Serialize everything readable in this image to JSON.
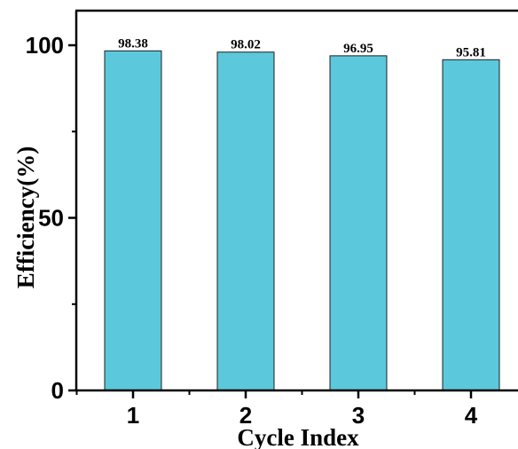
{
  "chart_data": {
    "type": "bar",
    "categories": [
      "1",
      "2",
      "3",
      "4"
    ],
    "values": [
      98.38,
      98.02,
      96.95,
      95.81
    ],
    "data_labels": [
      "98.38",
      "98.02",
      "96.95",
      "95.81"
    ],
    "xlabel": "Cycle Index",
    "ylabel": "Efficiency(%)",
    "ylim": [
      0,
      100
    ],
    "yticks": [
      0,
      50,
      100
    ],
    "ytick_labels": [
      "0",
      "50",
      "100"
    ],
    "grid": false,
    "legend": "none",
    "bar_color": "#5BC8DB"
  }
}
